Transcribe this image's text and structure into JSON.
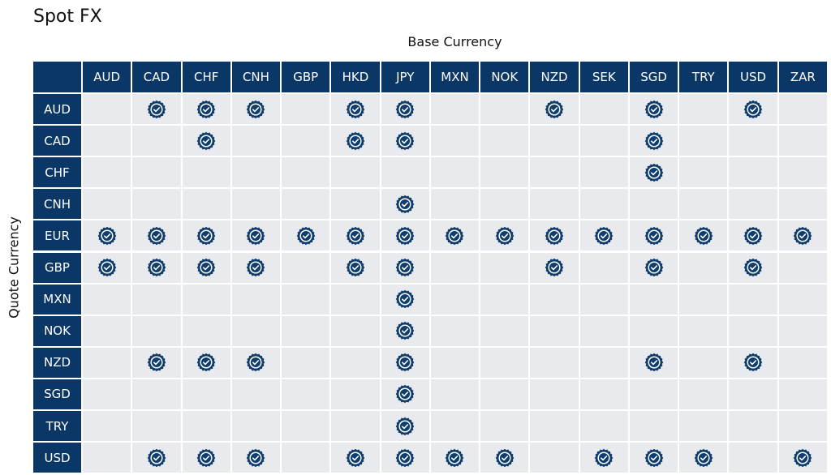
{
  "title": "Spot FX",
  "column_axis_label": "Base Currency",
  "row_axis_label": "Quote Currency",
  "columns": [
    "AUD",
    "CAD",
    "CHF",
    "CNH",
    "GBP",
    "HKD",
    "JPY",
    "MXN",
    "NOK",
    "NZD",
    "SEK",
    "SGD",
    "TRY",
    "USD",
    "ZAR"
  ],
  "rows": [
    {
      "label": "AUD",
      "cells": [
        false,
        true,
        true,
        true,
        false,
        true,
        true,
        false,
        false,
        true,
        false,
        true,
        false,
        true,
        false
      ]
    },
    {
      "label": "CAD",
      "cells": [
        false,
        false,
        true,
        false,
        false,
        true,
        true,
        false,
        false,
        false,
        false,
        true,
        false,
        false,
        false
      ]
    },
    {
      "label": "CHF",
      "cells": [
        false,
        false,
        false,
        false,
        false,
        false,
        false,
        false,
        false,
        false,
        false,
        true,
        false,
        false,
        false
      ]
    },
    {
      "label": "CNH",
      "cells": [
        false,
        false,
        false,
        false,
        false,
        false,
        true,
        false,
        false,
        false,
        false,
        false,
        false,
        false,
        false
      ]
    },
    {
      "label": "EUR",
      "cells": [
        true,
        true,
        true,
        true,
        true,
        true,
        true,
        true,
        true,
        true,
        true,
        true,
        true,
        true,
        true
      ]
    },
    {
      "label": "GBP",
      "cells": [
        true,
        true,
        true,
        true,
        false,
        true,
        true,
        false,
        false,
        true,
        false,
        true,
        false,
        true,
        false
      ]
    },
    {
      "label": "MXN",
      "cells": [
        false,
        false,
        false,
        false,
        false,
        false,
        true,
        false,
        false,
        false,
        false,
        false,
        false,
        false,
        false
      ]
    },
    {
      "label": "NOK",
      "cells": [
        false,
        false,
        false,
        false,
        false,
        false,
        true,
        false,
        false,
        false,
        false,
        false,
        false,
        false,
        false
      ]
    },
    {
      "label": "NZD",
      "cells": [
        false,
        true,
        true,
        true,
        false,
        false,
        true,
        false,
        false,
        false,
        false,
        true,
        false,
        true,
        false
      ]
    },
    {
      "label": "SGD",
      "cells": [
        false,
        false,
        false,
        false,
        false,
        false,
        true,
        false,
        false,
        false,
        false,
        false,
        false,
        false,
        false
      ]
    },
    {
      "label": "TRY",
      "cells": [
        false,
        false,
        false,
        false,
        false,
        false,
        true,
        false,
        false,
        false,
        false,
        false,
        false,
        false,
        false
      ]
    },
    {
      "label": "USD",
      "cells": [
        false,
        true,
        true,
        true,
        false,
        true,
        true,
        true,
        true,
        false,
        true,
        true,
        true,
        false,
        true
      ]
    }
  ]
}
